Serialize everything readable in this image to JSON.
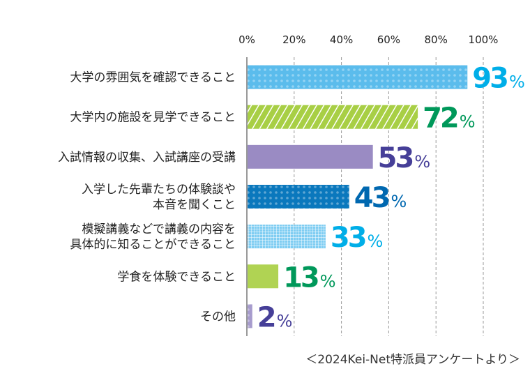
{
  "chart_data": {
    "type": "bar",
    "orientation": "horizontal",
    "xlim": [
      0,
      100
    ],
    "x_ticks": [
      "0%",
      "20%",
      "40%",
      "60%",
      "80%",
      "100%"
    ],
    "grid": true,
    "categories": [
      [
        "大学の雰囲気を確認できること"
      ],
      [
        "大学内の施設を見学できること"
      ],
      [
        "入試情報の収集、入試講座の受講"
      ],
      [
        "入学した先輩たちの体験談や",
        "本音を聞くこと"
      ],
      [
        "模擬講義などで講義の内容を",
        "具体的に知ることができること"
      ],
      [
        "学食を体験できること"
      ],
      [
        "その他"
      ]
    ],
    "values": [
      93,
      72,
      53,
      43,
      33,
      13,
      2
    ],
    "value_unit": "%",
    "bar_colors": [
      "#5bbcec",
      "#a8cf45",
      "#9a8bc3",
      "#0a78bd",
      "#7fcdf2",
      "#b0d353",
      "#a79ccd"
    ],
    "bar_patterns": [
      "dots",
      "stripes",
      "solid",
      "dots",
      "grid",
      "solid",
      "dots"
    ],
    "label_colors": [
      "#00aee8",
      "#00985a",
      "#463f98",
      "#0068b0",
      "#00aee8",
      "#00985a",
      "#463f98"
    ],
    "source": "＜2024Kei-Net特派員アンケートより＞"
  }
}
